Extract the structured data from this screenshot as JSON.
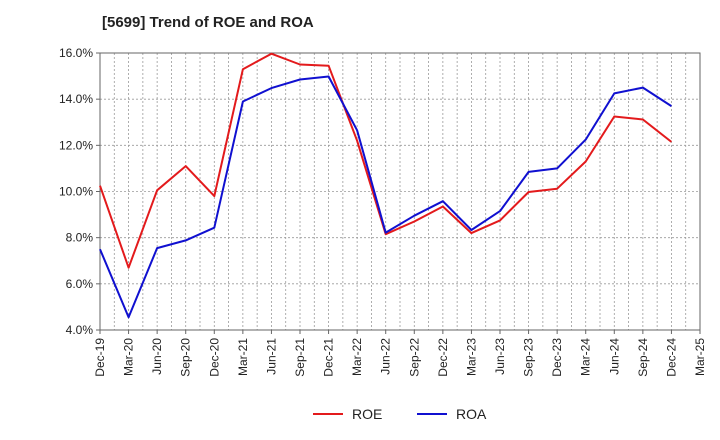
{
  "chart_data": {
    "type": "line",
    "title": "[5699]  Trend of ROE and ROA",
    "xlabel": "",
    "ylabel": "",
    "categories": [
      "Dec-19",
      "Mar-20",
      "Jun-20",
      "Sep-20",
      "Dec-20",
      "Mar-21",
      "Jun-21",
      "Sep-21",
      "Dec-21",
      "Mar-22",
      "Jun-22",
      "Sep-22",
      "Dec-22",
      "Mar-23",
      "Jun-23",
      "Sep-23",
      "Dec-23",
      "Mar-24",
      "Jun-24",
      "Sep-24",
      "Dec-24",
      "Mar-25"
    ],
    "ylim": [
      4.0,
      16.0
    ],
    "yticks": [
      "4.0%",
      "6.0%",
      "8.0%",
      "10.0%",
      "12.0%",
      "14.0%",
      "16.0%"
    ],
    "grid": true,
    "legend_position": "bottom-center",
    "series": [
      {
        "name": "ROE",
        "color": "#e31a1c",
        "values": [
          10.25,
          6.7,
          10.05,
          11.1,
          9.8,
          15.3,
          15.97,
          15.5,
          15.45,
          12.2,
          8.15,
          8.7,
          9.35,
          8.2,
          8.75,
          9.98,
          10.12,
          11.3,
          13.25,
          13.12,
          12.15,
          null
        ]
      },
      {
        "name": "ROA",
        "color": "#1010d0",
        "values": [
          7.5,
          4.55,
          7.55,
          7.88,
          8.43,
          13.9,
          14.48,
          14.85,
          14.98,
          12.65,
          8.22,
          8.95,
          9.58,
          8.33,
          9.15,
          10.85,
          11.0,
          12.25,
          14.25,
          14.5,
          13.7,
          null
        ]
      }
    ]
  }
}
